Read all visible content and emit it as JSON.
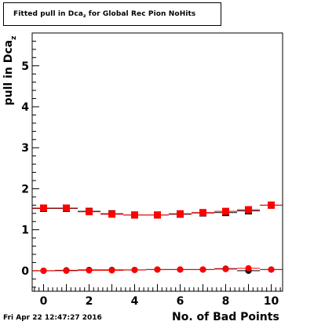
{
  "chart_data": {
    "type": "scatter",
    "title_main": "Fitted pull in Dca",
    "title_sub": "z",
    "title_rest": " for Global Rec Pion NoHits",
    "ylabel_main": "pull in Dca",
    "ylabel_sub": "z",
    "xlabel": "No. of Bad Points",
    "xlim": [
      -0.5,
      10.5
    ],
    "ylim": [
      -0.5,
      5.8
    ],
    "x_ticks": [
      0,
      2,
      4,
      6,
      8,
      10
    ],
    "y_ticks": [
      0,
      1,
      2,
      3,
      4,
      5
    ],
    "grid": false,
    "colors": {
      "series_red": "#ff0000",
      "series_black": "#000000"
    },
    "series": [
      {
        "marker": "square",
        "color": "#000000",
        "x": [
          0,
          1,
          2,
          3,
          4,
          5,
          6,
          7,
          8,
          9,
          10
        ],
        "y": [
          1.52,
          1.52,
          1.45,
          1.39,
          1.36,
          1.36,
          1.38,
          1.41,
          1.42,
          1.46,
          1.6
        ]
      },
      {
        "marker": "square",
        "color": "#ff0000",
        "x": [
          0,
          1,
          2,
          3,
          4,
          5,
          6,
          7,
          8,
          9,
          10
        ],
        "y": [
          1.53,
          1.53,
          1.44,
          1.38,
          1.36,
          1.36,
          1.39,
          1.42,
          1.45,
          1.49,
          1.6
        ]
      },
      {
        "marker": "circle",
        "color": "#000000",
        "x": [
          0,
          1,
          2,
          3,
          4,
          5,
          6,
          7,
          8,
          9,
          10
        ],
        "y": [
          0.0,
          0.01,
          0.02,
          0.02,
          0.02,
          0.03,
          0.03,
          0.03,
          0.05,
          0.0,
          0.03
        ]
      },
      {
        "marker": "circle",
        "color": "#ff0000",
        "x": [
          0,
          1,
          2,
          3,
          4,
          5,
          6,
          7,
          8,
          9,
          10
        ],
        "y": [
          0.0,
          0.0,
          0.01,
          0.01,
          0.02,
          0.03,
          0.03,
          0.03,
          0.04,
          0.06,
          0.03
        ]
      }
    ]
  },
  "footer": {
    "datestamp": "Fri Apr 22 12:47:27 2016"
  }
}
